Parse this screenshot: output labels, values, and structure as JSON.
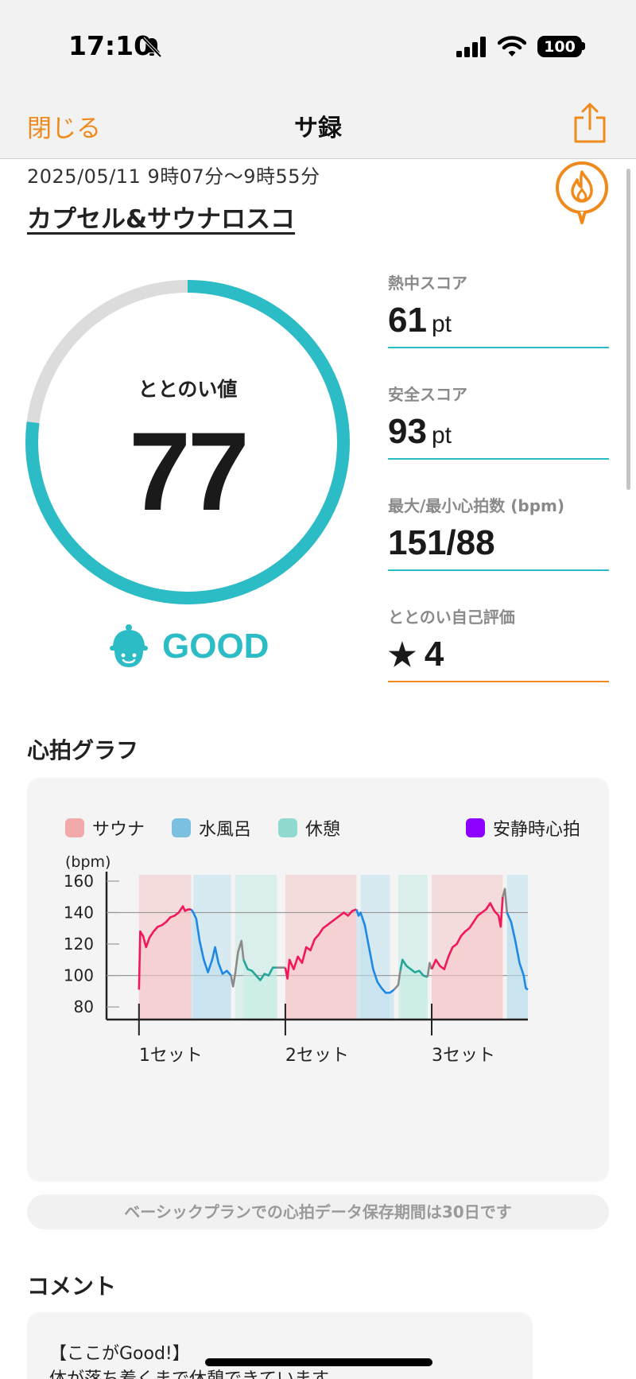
{
  "status_bar": {
    "time": "17:10",
    "battery": "100"
  },
  "nav": {
    "close_label": "閉じる",
    "title": "サ録"
  },
  "session": {
    "date_range": "2025/05/11 9時07分〜9時55分",
    "facility": "カプセル&サウナロスコ"
  },
  "gauge": {
    "label": "ととのい値",
    "value": "77",
    "fraction": 0.77,
    "rating": "GOOD"
  },
  "scores": [
    {
      "label": "熱中スコア",
      "value": "61",
      "unit": "pt"
    },
    {
      "label": "安全スコア",
      "value": "93",
      "unit": "pt"
    },
    {
      "label": "最大/最小心拍数 (bpm)",
      "value": "151/88",
      "unit": ""
    },
    {
      "label": "ととのい自己評価",
      "value": "4",
      "unit": ""
    }
  ],
  "heart_rate": {
    "section_title": "心拍グラフ",
    "legend": [
      {
        "label": "サウナ",
        "color": "#f2a9a9"
      },
      {
        "label": "水風呂",
        "color": "#7cc0e0"
      },
      {
        "label": "休憩",
        "color": "#8fd9cf"
      },
      {
        "label": "安静時心拍",
        "color": "#8b00ff"
      }
    ]
  },
  "chart_data": {
    "type": "line",
    "ylabel": "(bpm)",
    "ylim": [
      72,
      164
    ],
    "yticks": [
      160,
      140,
      120,
      100,
      80
    ],
    "gridlines": [
      140,
      100
    ],
    "x_range": [
      0,
      100
    ],
    "set_labels": [
      {
        "label": "1セット",
        "x": 7
      },
      {
        "label": "2セット",
        "x": 42
      },
      {
        "label": "3セット",
        "x": 77
      }
    ],
    "phases": [
      {
        "type": "sauna",
        "x0": 7,
        "x1": 19.5
      },
      {
        "type": "cold",
        "x0": 20,
        "x1": 29
      },
      {
        "type": "rest",
        "x0": 30,
        "x1": 40
      },
      {
        "type": "sauna",
        "x0": 42,
        "x1": 59
      },
      {
        "type": "cold",
        "x0": 60,
        "x1": 67
      },
      {
        "type": "rest",
        "x0": 69,
        "x1": 76
      },
      {
        "type": "sauna",
        "x0": 77,
        "x1": 94
      },
      {
        "type": "cold",
        "x0": 95,
        "x1": 100
      }
    ],
    "series": [
      {
        "type": "sauna",
        "color": "#f0185a",
        "points": [
          [
            7,
            91
          ],
          [
            7.3,
            128
          ],
          [
            8,
            125
          ],
          [
            8.7,
            118
          ],
          [
            9.5,
            124
          ],
          [
            10.5,
            128
          ],
          [
            11.5,
            131
          ],
          [
            12.5,
            132
          ],
          [
            13.5,
            134
          ],
          [
            14.5,
            137
          ],
          [
            15.5,
            138
          ],
          [
            16.5,
            140
          ],
          [
            17.5,
            144
          ],
          [
            18,
            141
          ],
          [
            18.7,
            142
          ],
          [
            19.5,
            142
          ]
        ]
      },
      {
        "type": "cold",
        "color": "#1e88e5",
        "points": [
          [
            19.5,
            142
          ],
          [
            20,
            140
          ],
          [
            20.7,
            136
          ],
          [
            21.5,
            122
          ],
          [
            22.5,
            110
          ],
          [
            23.5,
            102
          ],
          [
            24.5,
            110
          ],
          [
            25.2,
            118
          ],
          [
            26,
            108
          ],
          [
            27,
            101
          ],
          [
            28,
            103
          ],
          [
            29,
            100
          ]
        ]
      },
      {
        "type": "transition",
        "color": "#8a8a8a",
        "points": [
          [
            29,
            100
          ],
          [
            29.5,
            93
          ],
          [
            30,
            101
          ],
          [
            30.7,
            115
          ],
          [
            31.5,
            122
          ],
          [
            32,
            110
          ]
        ]
      },
      {
        "type": "rest",
        "color": "#26a69a",
        "points": [
          [
            32,
            110
          ],
          [
            33,
            104
          ],
          [
            34,
            103
          ],
          [
            35,
            100
          ],
          [
            36,
            97
          ],
          [
            37,
            101
          ],
          [
            38,
            100
          ],
          [
            39,
            105
          ],
          [
            40,
            105
          ]
        ]
      },
      {
        "type": "transition",
        "color": "#8a8a8a",
        "points": [
          [
            40,
            105
          ],
          [
            42,
            105
          ]
        ]
      },
      {
        "type": "sauna",
        "color": "#f0185a",
        "points": [
          [
            42,
            105
          ],
          [
            42.5,
            98
          ],
          [
            43,
            110
          ],
          [
            44,
            104
          ],
          [
            45,
            112
          ],
          [
            46,
            108
          ],
          [
            47,
            118
          ],
          [
            48,
            116
          ],
          [
            49,
            123
          ],
          [
            50,
            126
          ],
          [
            51,
            130
          ],
          [
            52,
            132
          ],
          [
            53,
            134
          ],
          [
            54,
            136
          ],
          [
            55,
            138
          ],
          [
            56,
            140
          ],
          [
            57,
            138
          ],
          [
            58,
            141
          ],
          [
            59,
            142
          ]
        ]
      },
      {
        "type": "cold",
        "color": "#1e88e5",
        "points": [
          [
            59,
            142
          ],
          [
            59.5,
            138
          ],
          [
            60,
            140
          ],
          [
            61,
            132
          ],
          [
            62,
            118
          ],
          [
            63,
            104
          ],
          [
            64,
            96
          ],
          [
            65,
            92
          ],
          [
            66,
            89
          ],
          [
            67,
            89
          ],
          [
            68,
            91
          ]
        ]
      },
      {
        "type": "transition",
        "color": "#8a8a8a",
        "points": [
          [
            68,
            91
          ],
          [
            69,
            94
          ],
          [
            69.5,
            103
          ]
        ]
      },
      {
        "type": "rest",
        "color": "#26a69a",
        "points": [
          [
            69.5,
            103
          ],
          [
            70,
            110
          ],
          [
            71,
            106
          ],
          [
            72,
            104
          ],
          [
            73,
            102
          ],
          [
            74,
            103
          ],
          [
            75,
            100
          ],
          [
            76,
            99
          ]
        ]
      },
      {
        "type": "transition",
        "color": "#8a8a8a",
        "points": [
          [
            76,
            99
          ],
          [
            76.5,
            108
          ],
          [
            77,
            104
          ]
        ]
      },
      {
        "type": "sauna",
        "color": "#f0185a",
        "points": [
          [
            77,
            104
          ],
          [
            78,
            110
          ],
          [
            79,
            106
          ],
          [
            80,
            104
          ],
          [
            81,
            112
          ],
          [
            82,
            118
          ],
          [
            83,
            120
          ],
          [
            84,
            125
          ],
          [
            85,
            128
          ],
          [
            86,
            130
          ],
          [
            87,
            134
          ],
          [
            88,
            138
          ],
          [
            89,
            140
          ],
          [
            90,
            142
          ],
          [
            91,
            146
          ],
          [
            92,
            141
          ],
          [
            93,
            138
          ],
          [
            93.5,
            131
          ],
          [
            94,
            150
          ]
        ]
      },
      {
        "type": "transition",
        "color": "#8a8a8a",
        "points": [
          [
            94,
            150
          ],
          [
            94.5,
            155
          ],
          [
            95,
            140
          ]
        ]
      },
      {
        "type": "cold",
        "color": "#1e88e5",
        "points": [
          [
            95,
            140
          ],
          [
            96,
            134
          ],
          [
            97,
            122
          ],
          [
            98,
            108
          ],
          [
            99,
            100
          ],
          [
            99.5,
            92
          ],
          [
            100,
            91
          ]
        ]
      }
    ]
  },
  "notice": "ベーシックプランでの心拍データ保存期間は30日です",
  "comment": {
    "section_title": "コメント",
    "lines": [
      "【ここがGood!】",
      "体が落ち着くまで休憩できています。"
    ]
  }
}
